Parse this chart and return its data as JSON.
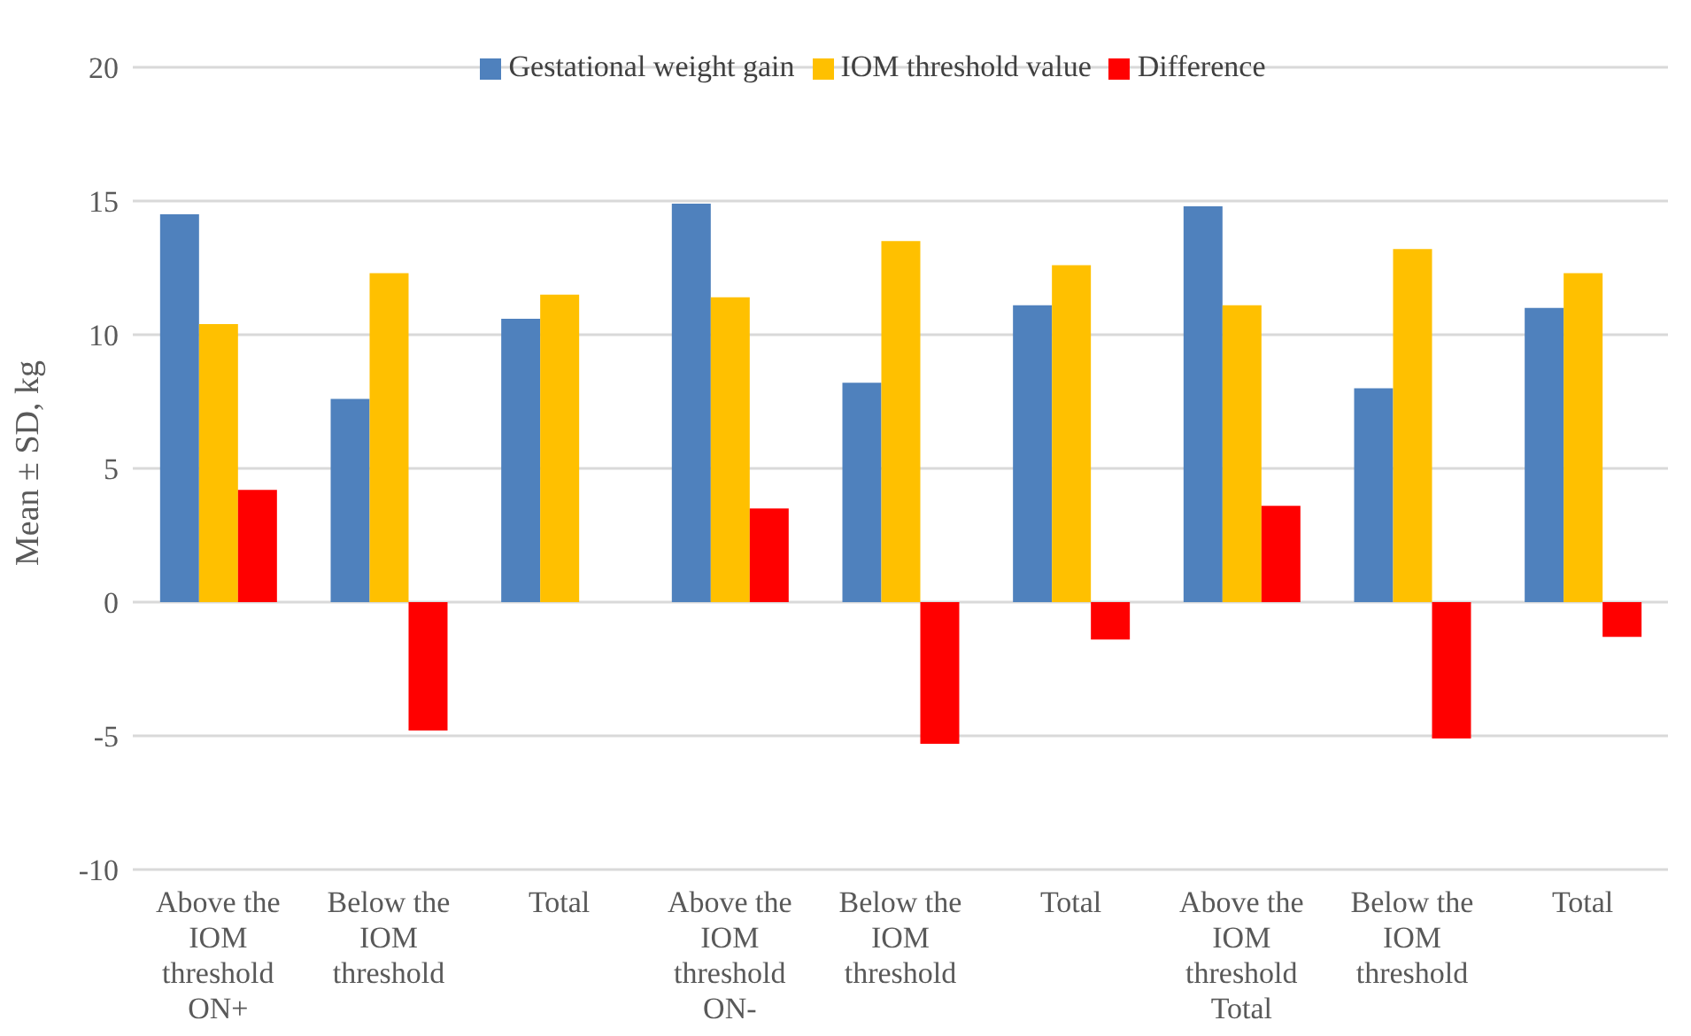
{
  "chart_data": {
    "type": "bar",
    "ylabel": "Mean ± SD, kg",
    "categories": [
      "Above the IOM threshold ON+",
      "Below the IOM threshold",
      "Total",
      "Above the IOM threshold ON-",
      "Below the IOM threshold",
      "Total",
      "Above the IOM threshold Total",
      "Below the IOM threshold",
      "Total"
    ],
    "series": [
      {
        "name": "Gestational weight gain",
        "color": "#4f81bd",
        "values": [
          14.5,
          7.6,
          10.6,
          14.9,
          8.2,
          11.1,
          14.8,
          8.0,
          11.0
        ]
      },
      {
        "name": "IOM threshold value",
        "color": "#ffc000",
        "values": [
          10.4,
          12.3,
          11.5,
          11.4,
          13.5,
          12.6,
          11.1,
          13.2,
          12.3
        ]
      },
      {
        "name": "Difference",
        "color": "#ff0000",
        "values": [
          4.2,
          -4.8,
          null,
          3.5,
          -5.3,
          -1.4,
          3.6,
          -5.1,
          -1.3
        ]
      }
    ],
    "ylim": [
      -10,
      20
    ],
    "yticks": [
      -10,
      -5,
      0,
      5,
      10,
      15,
      20
    ],
    "grid": "y",
    "legend": "top"
  }
}
